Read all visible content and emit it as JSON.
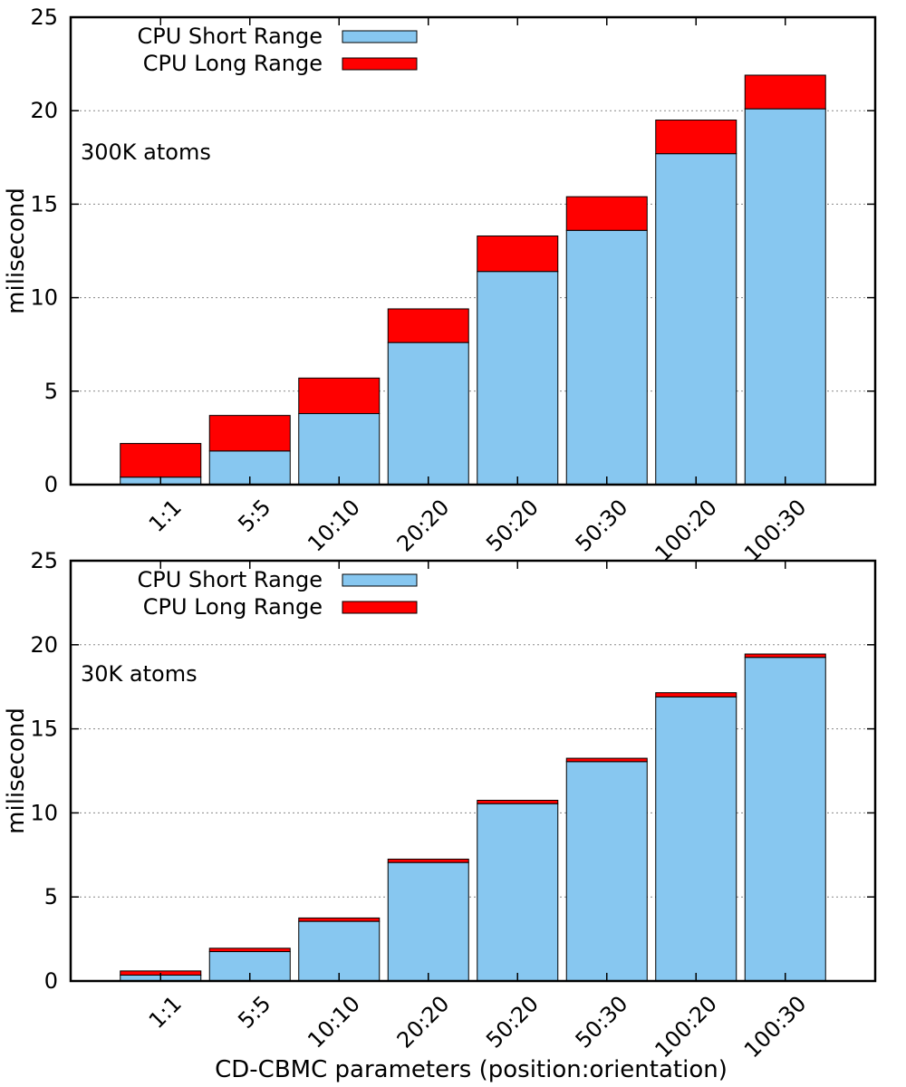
{
  "chart_data": [
    {
      "type": "bar",
      "stacked": true,
      "annotation": "300K atoms",
      "ylabel": "milisecond",
      "xlabel": "",
      "ylim": [
        0,
        25
      ],
      "yticks": [
        0,
        5,
        10,
        15,
        20,
        25
      ],
      "grid": true,
      "legend_position": "top-left",
      "categories": [
        "1:1",
        "5:5",
        "10:10",
        "20:20",
        "50:20",
        "50:30",
        "100:20",
        "100:30"
      ],
      "series": [
        {
          "name": "CPU Short Range",
          "color": "#87c7f0",
          "values": [
            0.4,
            1.8,
            3.8,
            7.6,
            11.4,
            13.6,
            17.7,
            20.1
          ]
        },
        {
          "name": "CPU Long Range",
          "color": "#ff0000",
          "values": [
            1.8,
            1.9,
            1.9,
            1.8,
            1.9,
            1.8,
            1.8,
            1.8
          ]
        }
      ]
    },
    {
      "type": "bar",
      "stacked": true,
      "annotation": "30K atoms",
      "ylabel": "milisecond",
      "xlabel": "CD-CBMC parameters (position:orientation)",
      "ylim": [
        0,
        25
      ],
      "yticks": [
        0,
        5,
        10,
        15,
        20,
        25
      ],
      "grid": true,
      "legend_position": "top-left",
      "categories": [
        "1:1",
        "5:5",
        "10:10",
        "20:20",
        "50:20",
        "50:30",
        "100:20",
        "100:30"
      ],
      "series": [
        {
          "name": "CPU Short Range",
          "color": "#87c7f0",
          "values": [
            0.35,
            1.75,
            3.55,
            7.05,
            10.55,
            13.05,
            16.9,
            19.25
          ]
        },
        {
          "name": "CPU Long Range",
          "color": "#ff0000",
          "values": [
            0.25,
            0.2,
            0.2,
            0.2,
            0.2,
            0.2,
            0.25,
            0.2
          ]
        }
      ]
    }
  ]
}
